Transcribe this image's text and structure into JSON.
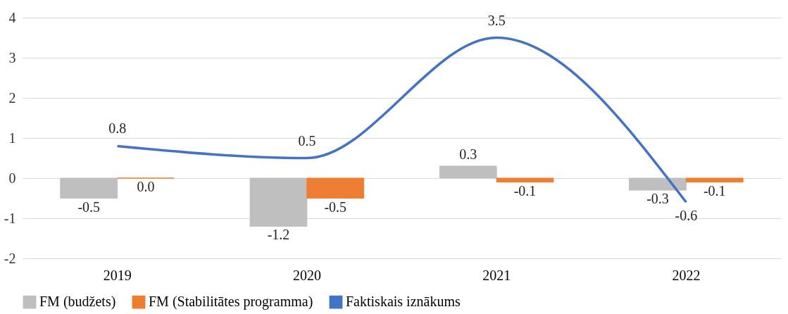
{
  "chart_data": {
    "type": "bar",
    "categories": [
      "2019",
      "2020",
      "2021",
      "2022"
    ],
    "series": [
      {
        "name": "FM (budžets)",
        "color": "#bfbfbf",
        "values": [
          -0.5,
          -1.2,
          0.3,
          -0.3
        ],
        "value_labels": [
          "-0.5",
          "-1.2",
          "0.3",
          "-0.3"
        ]
      },
      {
        "name": "FM (Stabilitātes programma)",
        "color": "#ed7d31",
        "values": [
          0,
          -0.5,
          -0.1,
          -0.1
        ],
        "value_labels": [
          "0.0",
          "-0.5",
          "-0.1",
          "-0.1"
        ]
      },
      {
        "name": "Faktiskais iznākums",
        "type": "line",
        "color": "#4472c4",
        "values": [
          0.8,
          0.5,
          3.5,
          -0.6
        ],
        "value_labels": [
          "0.8",
          "0.5",
          "3.5",
          "-0.6"
        ]
      }
    ],
    "ylim": [
      -2,
      4
    ],
    "yticks": [
      -2,
      -1,
      0,
      1,
      2,
      3,
      4
    ],
    "grid": "y",
    "legend": "bottom",
    "marker": "none"
  }
}
